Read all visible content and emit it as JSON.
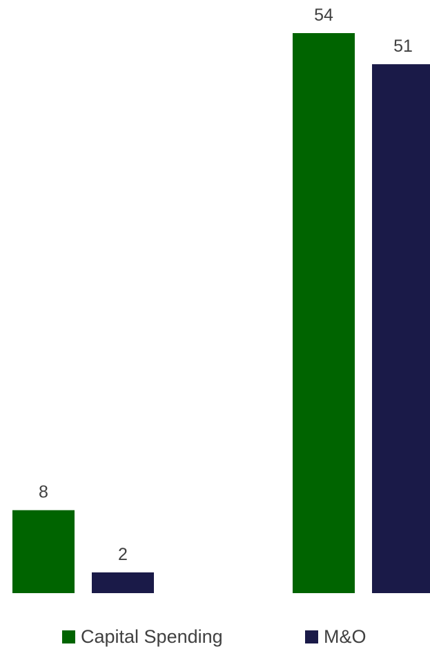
{
  "chart_data": {
    "type": "bar",
    "categories": [
      "",
      ""
    ],
    "series": [
      {
        "name": "Capital Spending",
        "color": "#006400",
        "values": [
          8,
          54
        ]
      },
      {
        "name": "M&O",
        "color": "#1a1a48",
        "values": [
          2,
          51
        ]
      }
    ],
    "ylim": [
      0,
      54
    ],
    "grid": false,
    "legend_position": "bottom",
    "data_labels": true
  }
}
